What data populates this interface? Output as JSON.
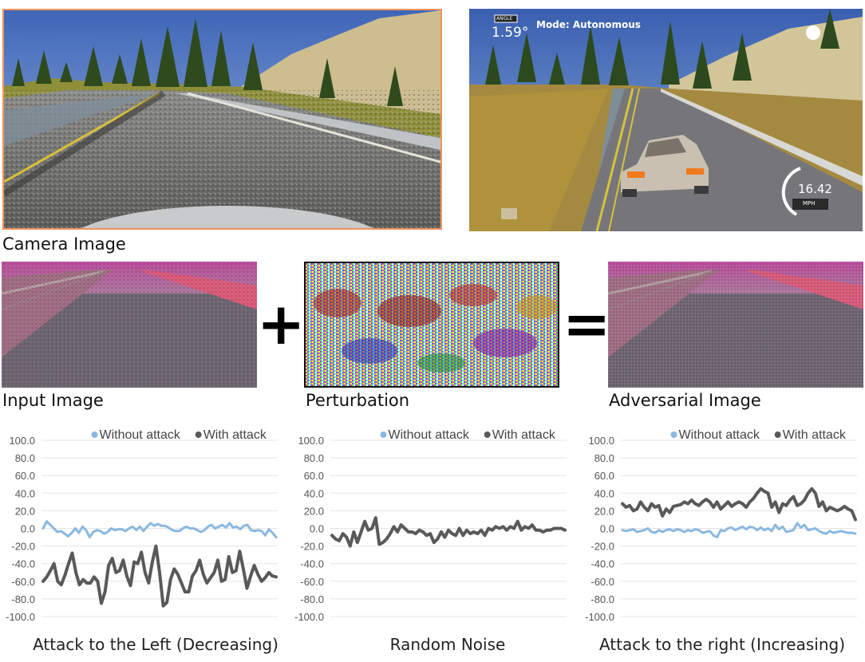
{
  "top": {
    "camera_label": "Camera Image",
    "hud": {
      "badge": "ANGLE",
      "angle": "1.59°",
      "mode": "Mode: Autonomous",
      "speed": "16.42",
      "speed_unit": "MPH"
    }
  },
  "middle": {
    "input_label": "Input Image",
    "perturbation_label": "Perturbation",
    "adversarial_label": "Adversarial Image",
    "plus": "+",
    "equals": "="
  },
  "colors": {
    "without": "#8ab8e0",
    "with": "#595959",
    "grid": "#e4e4e4",
    "frame": "#f0945a"
  },
  "chart_data": [
    {
      "type": "line",
      "title": "Attack to the Left (Decreasing)",
      "legend": "top-right",
      "ylim": [
        -100,
        100
      ],
      "yticks": [
        "100.0",
        "80.0",
        "60.0",
        "40.0",
        "20.0",
        "0.0",
        "-20.0",
        "-40.0",
        "-60.0",
        "-80.0",
        "-100.0"
      ],
      "series": [
        {
          "name": "Without attack",
          "values": [
            0,
            8,
            4,
            0,
            -4,
            -3,
            -6,
            -9,
            -5,
            0,
            -5,
            2,
            -2,
            -10,
            -4,
            -2,
            -3,
            -6,
            -4,
            0,
            -2,
            -1,
            -1,
            -3,
            0,
            2,
            -2,
            2,
            -3,
            2,
            6,
            3,
            5,
            3,
            3,
            1,
            -2,
            -3,
            -3,
            0,
            2,
            0,
            0,
            -2,
            -4,
            -2,
            2,
            4,
            0,
            2,
            4,
            1,
            6,
            1,
            2,
            -1,
            3,
            4,
            -2,
            -3,
            -2,
            -3,
            -8,
            -1,
            -5,
            -10
          ]
        },
        {
          "name": "With attack",
          "values": [
            -60,
            -55,
            -48,
            -40,
            -60,
            -64,
            -53,
            -40,
            -28,
            -50,
            -64,
            -58,
            -62,
            -62,
            -55,
            -60,
            -85,
            -72,
            -42,
            -34,
            -50,
            -48,
            -36,
            -54,
            -65,
            -38,
            -40,
            -27,
            -50,
            -62,
            -38,
            -20,
            -50,
            -88,
            -84,
            -58,
            -46,
            -52,
            -62,
            -72,
            -72,
            -54,
            -48,
            -36,
            -52,
            -62,
            -56,
            -50,
            -36,
            -60,
            -58,
            -32,
            -50,
            -48,
            -26,
            -46,
            -68,
            -54,
            -42,
            -52,
            -60,
            -56,
            -50,
            -54,
            -55
          ]
        }
      ]
    },
    {
      "type": "line",
      "title": "Random Noise",
      "legend": "top-right",
      "ylim": [
        -100,
        100
      ],
      "yticks": [
        "100.0",
        "80.0",
        "60.0",
        "40.0",
        "20.0",
        "0.0",
        "-20.0",
        "-40.0",
        "-60.0",
        "-80.0",
        "-100.0"
      ],
      "series": [
        {
          "name": "Without attack",
          "values": []
        },
        {
          "name": "With attack",
          "values": [
            -8,
            -12,
            -14,
            -6,
            -10,
            -20,
            -4,
            -16,
            -4,
            8,
            -2,
            0,
            12,
            -18,
            -16,
            -12,
            -6,
            2,
            -4,
            4,
            0,
            -4,
            -4,
            -6,
            -2,
            -4,
            -8,
            -6,
            -16,
            -12,
            -4,
            -10,
            -2,
            -6,
            -8,
            0,
            -8,
            -2,
            -6,
            -4,
            -6,
            -2,
            -8,
            0,
            -2,
            2,
            0,
            2,
            -2,
            2,
            0,
            8,
            -2,
            2,
            0,
            4,
            -2,
            -2,
            -4,
            -2,
            -2,
            0,
            0,
            0,
            -2
          ]
        }
      ]
    },
    {
      "type": "line",
      "title": "Attack to the right (Increasing)",
      "legend": "top-right",
      "ylim": [
        -100,
        100
      ],
      "yticks": [
        "100.0",
        "80.0",
        "60.0",
        "40.0",
        "20.0",
        "0.0",
        "-20.0",
        "-40.0",
        "-60.0",
        "-80.0",
        "-100.0"
      ],
      "series": [
        {
          "name": "Without attack",
          "values": [
            -2,
            -3,
            -2,
            -1,
            -4,
            -3,
            -2,
            0,
            -4,
            -5,
            -2,
            -4,
            -2,
            -1,
            -3,
            -1,
            -2,
            -4,
            -2,
            -3,
            -1,
            -2,
            -5,
            -4,
            -3,
            -8,
            -10,
            -2,
            -3,
            0,
            1,
            -2,
            0,
            2,
            -1,
            2,
            1,
            -2,
            1,
            -2,
            0,
            -3,
            4,
            -1,
            2,
            -4,
            -3,
            -2,
            6,
            1,
            4,
            -2,
            -1,
            0,
            -3,
            -5,
            -6,
            -3,
            -5,
            -4,
            -3,
            -4,
            -5,
            -5,
            -6
          ]
        },
        {
          "name": "With attack",
          "values": [
            28,
            24,
            26,
            20,
            22,
            30,
            24,
            20,
            28,
            24,
            26,
            14,
            22,
            18,
            25,
            26,
            27,
            30,
            28,
            32,
            28,
            26,
            30,
            33,
            30,
            24,
            30,
            22,
            26,
            30,
            25,
            28,
            30,
            28,
            24,
            30,
            34,
            40,
            45,
            42,
            40,
            24,
            30,
            18,
            28,
            26,
            32,
            36,
            26,
            28,
            32,
            40,
            45,
            40,
            25,
            30,
            20,
            24,
            22,
            20,
            22,
            25,
            22,
            20,
            10
          ]
        }
      ]
    }
  ]
}
